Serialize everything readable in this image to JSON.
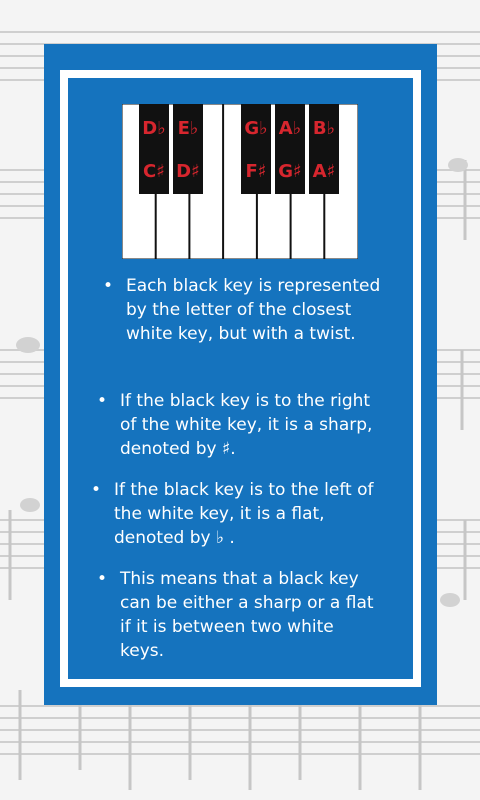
{
  "keyboard": {
    "top_labels": [
      "D♭",
      "E♭",
      "G♭",
      "A♭",
      "B♭"
    ],
    "bottom_labels": [
      "C♯",
      "D♯",
      "F♯",
      "G♯",
      "A♯"
    ]
  },
  "bullets": [
    {
      "text": "Each black key is represented by the letter of the closest white key, but with a twist."
    },
    {
      "text": "If the black key is to the right of the white key, it is a sharp, denoted by ♯."
    },
    {
      "text": "If the black key is to the left of the white key, it is a flat, denoted by ♭ ."
    },
    {
      "text": "This means that a black key can be either a sharp or a flat if it is between two white keys."
    }
  ],
  "colors": {
    "panel_blue": "#1573be",
    "label_red": "#d7262e",
    "key_black": "#111111",
    "frame_white": "#ffffff"
  }
}
